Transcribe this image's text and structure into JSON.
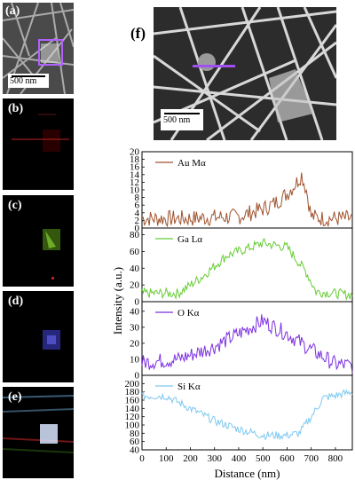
{
  "panels": {
    "a": {
      "label": "(a)",
      "scale": "500 nm"
    },
    "b": {
      "label": "(b)"
    },
    "c": {
      "label": "(c)"
    },
    "d": {
      "label": "(d)"
    },
    "e": {
      "label": "(e)"
    },
    "f": {
      "label": "(f)",
      "scale": "500 nm"
    }
  },
  "colors": {
    "au": "#a0522d",
    "ga": "#66cc33",
    "o": "#7b2fe0",
    "si": "#7ec8f0",
    "au_peak": "#e03030",
    "selection": "#a050f0"
  },
  "chart_data": {
    "type": "line",
    "xlabel": "Distance (nm)",
    "ylabel": "Intensity (a.u.)",
    "xlim": [
      0,
      870
    ],
    "xticks": [
      0,
      100,
      200,
      300,
      400,
      500,
      600,
      700,
      800
    ],
    "series": [
      {
        "name": "Au Mα",
        "ylim": [
          0,
          20
        ],
        "yticks": [
          0,
          2,
          4,
          6,
          8,
          10,
          12,
          14,
          16,
          18,
          20
        ],
        "profile": [
          [
            0,
            2.5
          ],
          [
            100,
            2.5
          ],
          [
            200,
            2.5
          ],
          [
            300,
            2.8
          ],
          [
            400,
            3
          ],
          [
            450,
            4
          ],
          [
            500,
            5
          ],
          [
            550,
            6.5
          ],
          [
            600,
            9
          ],
          [
            640,
            12
          ],
          [
            660,
            14
          ],
          [
            680,
            10
          ],
          [
            700,
            3
          ],
          [
            750,
            2.5
          ],
          [
            870,
            2.5
          ]
        ],
        "noise": 2.2
      },
      {
        "name": "Ga Lα",
        "ylim": [
          0,
          88
        ],
        "yticks": [
          0,
          20,
          40,
          60,
          80
        ],
        "profile": [
          [
            0,
            10
          ],
          [
            150,
            10
          ],
          [
            250,
            30
          ],
          [
            350,
            55
          ],
          [
            450,
            65
          ],
          [
            500,
            70
          ],
          [
            600,
            65
          ],
          [
            680,
            35
          ],
          [
            720,
            12
          ],
          [
            870,
            8
          ]
        ],
        "noise": 6
      },
      {
        "name": "O Kα",
        "ylim": [
          0,
          46
        ],
        "yticks": [
          0,
          10,
          20,
          30,
          40
        ],
        "profile": [
          [
            0,
            8
          ],
          [
            150,
            10
          ],
          [
            300,
            18
          ],
          [
            400,
            26
          ],
          [
            500,
            34
          ],
          [
            600,
            26
          ],
          [
            700,
            16
          ],
          [
            800,
            7
          ],
          [
            870,
            6
          ]
        ],
        "noise": 5
      },
      {
        "name": "Si Kα",
        "ylim": [
          40,
          220
        ],
        "yticks": [
          40,
          60,
          80,
          100,
          120,
          140,
          160,
          180,
          200
        ],
        "profile": [
          [
            0,
            170
          ],
          [
            100,
            170
          ],
          [
            200,
            140
          ],
          [
            300,
            110
          ],
          [
            400,
            90
          ],
          [
            500,
            75
          ],
          [
            600,
            75
          ],
          [
            650,
            80
          ],
          [
            700,
            120
          ],
          [
            750,
            165
          ],
          [
            870,
            180
          ]
        ],
        "noise": 10
      }
    ]
  }
}
